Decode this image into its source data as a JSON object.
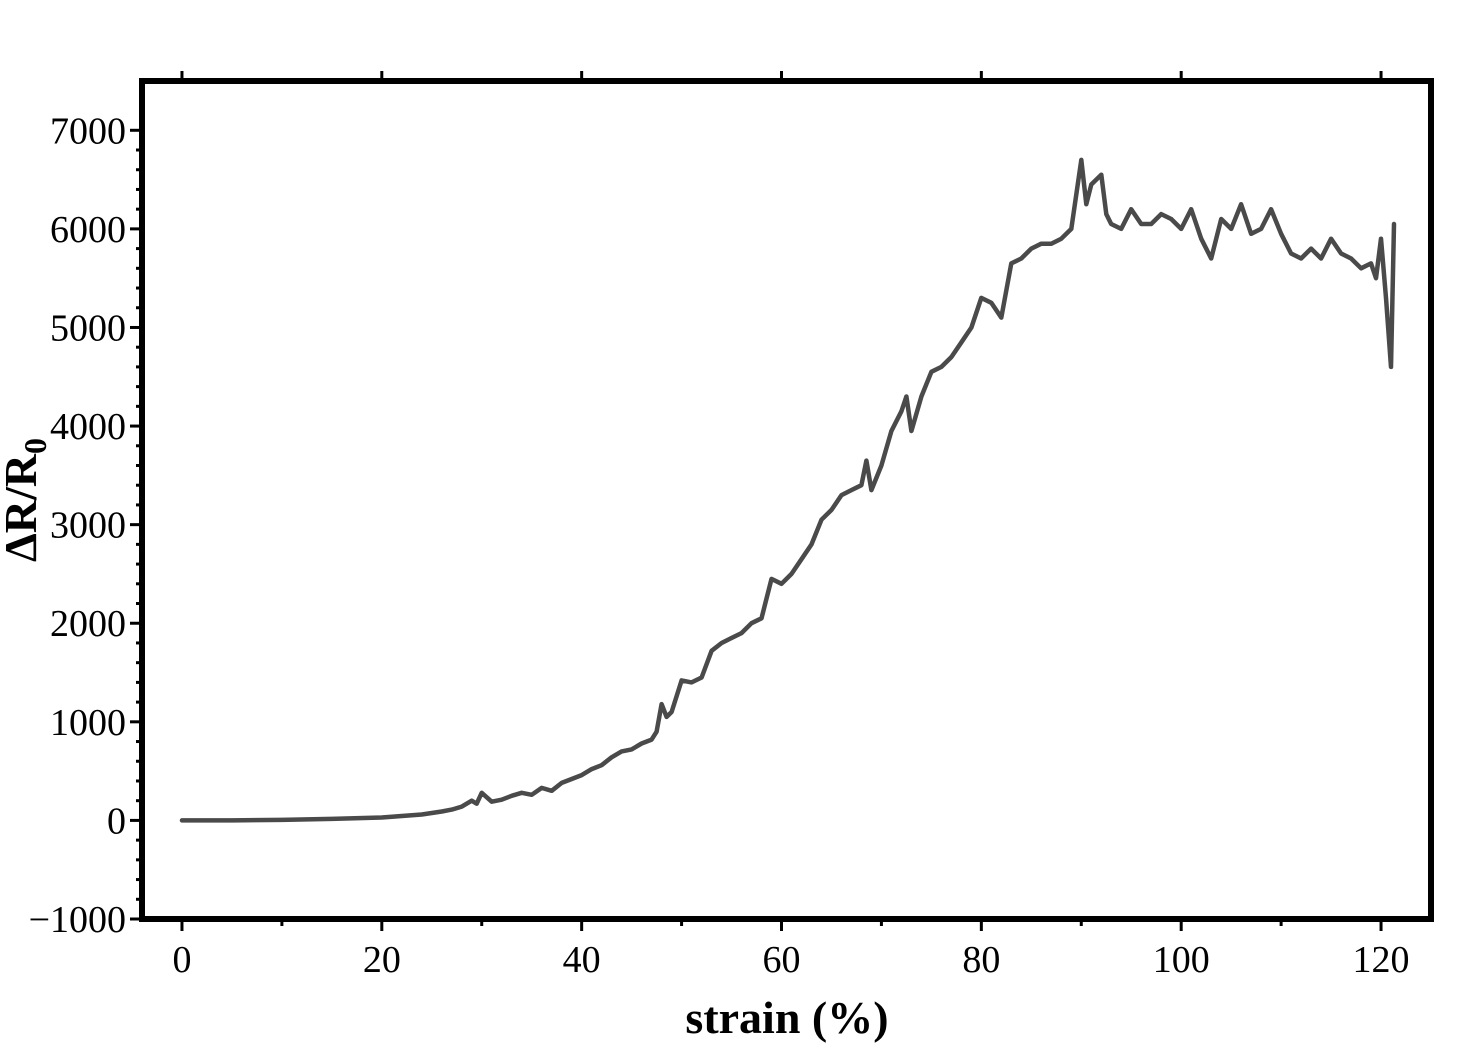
{
  "chart_data": {
    "type": "line",
    "title": "",
    "xlabel": "strain (%)",
    "ylabel": "ΔR/R",
    "ylabel_subscript": "0",
    "xlim": [
      -4,
      125
    ],
    "ylim": [
      -1000,
      7500
    ],
    "x_ticks": [
      0,
      20,
      40,
      60,
      80,
      100,
      120
    ],
    "x_tick_labels": [
      "0",
      "20",
      "40",
      "60",
      "80",
      "100",
      "120"
    ],
    "y_ticks": [
      -1000,
      0,
      1000,
      2000,
      3000,
      4000,
      5000,
      6000,
      7000
    ],
    "y_tick_labels": [
      "−1000",
      "0",
      "1000",
      "2000",
      "3000",
      "4000",
      "5000",
      "6000",
      "7000"
    ],
    "grid": false,
    "legend": "none",
    "line_color": "#4a4a4a",
    "series": [
      {
        "x": [
          0,
          5,
          10,
          15,
          20,
          22,
          24,
          26,
          27,
          28,
          29,
          29.5,
          30,
          31,
          32,
          33,
          34,
          35,
          36,
          37,
          38,
          39,
          40,
          41,
          42,
          43,
          44,
          45,
          46,
          47,
          47.5,
          48,
          48.5,
          49,
          50,
          51,
          52,
          53,
          54,
          55,
          56,
          57,
          58,
          59,
          60,
          61,
          62,
          63,
          64,
          65,
          66,
          67,
          68,
          68.5,
          69,
          70,
          71,
          72,
          72.5,
          73,
          74,
          75,
          76,
          77,
          78,
          79,
          80,
          81,
          82,
          83,
          84,
          85,
          86,
          87,
          88,
          89,
          90,
          90.5,
          91,
          92,
          92.5,
          93,
          94,
          95,
          96,
          97,
          98,
          99,
          100,
          101,
          102,
          103,
          104,
          105,
          106,
          107,
          108,
          109,
          110,
          111,
          112,
          113,
          114,
          115,
          116,
          117,
          118,
          119,
          119.5,
          120,
          120.5,
          121,
          121.3
        ],
        "y": [
          0,
          0,
          5,
          15,
          30,
          45,
          60,
          90,
          110,
          140,
          200,
          170,
          280,
          190,
          210,
          250,
          280,
          260,
          330,
          300,
          380,
          420,
          460,
          520,
          560,
          640,
          700,
          720,
          780,
          820,
          900,
          1180,
          1050,
          1100,
          1420,
          1400,
          1450,
          1720,
          1800,
          1850,
          1900,
          2000,
          2050,
          2450,
          2400,
          2500,
          2650,
          2800,
          3050,
          3150,
          3300,
          3350,
          3400,
          3650,
          3350,
          3600,
          3950,
          4150,
          4300,
          3950,
          4300,
          4550,
          4600,
          4700,
          4850,
          5000,
          5300,
          5250,
          5100,
          5650,
          5700,
          5800,
          5850,
          5850,
          5900,
          6000,
          6700,
          6250,
          6450,
          6550,
          6150,
          6050,
          6000,
          6200,
          6050,
          6050,
          6150,
          6100,
          6000,
          6200,
          5900,
          5700,
          6100,
          6000,
          6250,
          5950,
          6000,
          6200,
          5950,
          5750,
          5700,
          5800,
          5700,
          5900,
          5750,
          5700,
          5600,
          5650,
          5500,
          5900,
          5300,
          4600,
          6050
        ]
      }
    ]
  }
}
